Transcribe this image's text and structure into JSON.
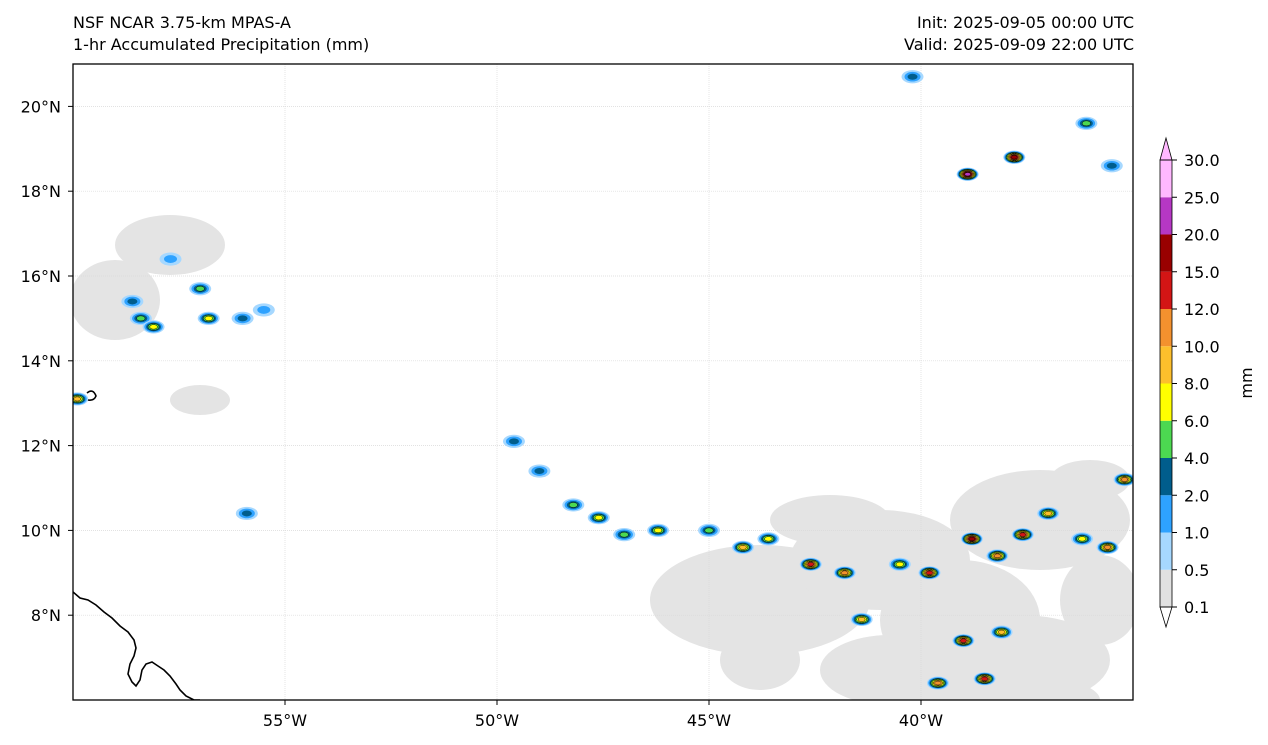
{
  "titles": {
    "left_line1": "NSF NCAR 3.75-km MPAS-A",
    "left_line2": "1-hr Accumulated Precipitation (mm)",
    "init": "Init: 2025-09-05 00:00 UTC",
    "valid": "Valid: 2025-09-09 22:00 UTC"
  },
  "map": {
    "lon_range": [
      -60,
      -35
    ],
    "lat_range": [
      6,
      21
    ],
    "lon_ticks": [
      {
        "value": -55,
        "label": "55°W"
      },
      {
        "value": -50,
        "label": "50°W"
      },
      {
        "value": -45,
        "label": "45°W"
      },
      {
        "value": -40,
        "label": "40°W"
      }
    ],
    "lat_ticks": [
      {
        "value": 8,
        "label": "8°N"
      },
      {
        "value": 10,
        "label": "10°N"
      },
      {
        "value": 12,
        "label": "12°N"
      },
      {
        "value": 14,
        "label": "14°N"
      },
      {
        "value": 16,
        "label": "16°N"
      },
      {
        "value": 18,
        "label": "18°N"
      },
      {
        "value": 20,
        "label": "20°N"
      }
    ],
    "gridlines": true,
    "precip_cells": [
      {
        "lon": -58.6,
        "lat": 15.4,
        "mm": 2.0
      },
      {
        "lon": -58.4,
        "lat": 15.0,
        "mm": 4.0
      },
      {
        "lon": -58.1,
        "lat": 14.8,
        "mm": 6.0
      },
      {
        "lon": -57.7,
        "lat": 16.4,
        "mm": 1.0
      },
      {
        "lon": -57.0,
        "lat": 15.7,
        "mm": 4.0
      },
      {
        "lon": -56.8,
        "lat": 15.0,
        "mm": 6.0
      },
      {
        "lon": -56.0,
        "lat": 15.0,
        "mm": 2.0
      },
      {
        "lon": -55.5,
        "lat": 15.2,
        "mm": 1.0
      },
      {
        "lon": -59.9,
        "lat": 13.1,
        "mm": 8.0
      },
      {
        "lon": -49.6,
        "lat": 12.1,
        "mm": 2.0
      },
      {
        "lon": -49.0,
        "lat": 11.4,
        "mm": 2.0
      },
      {
        "lon": -48.2,
        "lat": 10.6,
        "mm": 4.0
      },
      {
        "lon": -47.6,
        "lat": 10.3,
        "mm": 6.0
      },
      {
        "lon": -47.0,
        "lat": 9.9,
        "mm": 4.0
      },
      {
        "lon": -46.2,
        "lat": 10.0,
        "mm": 6.0
      },
      {
        "lon": -45.0,
        "lat": 10.0,
        "mm": 4.0
      },
      {
        "lon": -44.2,
        "lat": 9.6,
        "mm": 8.0
      },
      {
        "lon": -43.6,
        "lat": 9.8,
        "mm": 6.0
      },
      {
        "lon": -42.6,
        "lat": 9.2,
        "mm": 12.0
      },
      {
        "lon": -41.8,
        "lat": 9.0,
        "mm": 10.0
      },
      {
        "lon": -41.4,
        "lat": 7.9,
        "mm": 8.0
      },
      {
        "lon": -40.5,
        "lat": 9.2,
        "mm": 6.0
      },
      {
        "lon": -39.8,
        "lat": 9.0,
        "mm": 12.0
      },
      {
        "lon": -38.8,
        "lat": 9.8,
        "mm": 15.0
      },
      {
        "lon": -38.2,
        "lat": 9.4,
        "mm": 10.0
      },
      {
        "lon": -37.6,
        "lat": 9.9,
        "mm": 12.0
      },
      {
        "lon": -37.0,
        "lat": 10.4,
        "mm": 8.0
      },
      {
        "lon": -36.2,
        "lat": 9.8,
        "mm": 6.0
      },
      {
        "lon": -35.6,
        "lat": 9.6,
        "mm": 10.0
      },
      {
        "lon": -39.0,
        "lat": 7.4,
        "mm": 12.0
      },
      {
        "lon": -38.1,
        "lat": 7.6,
        "mm": 8.0
      },
      {
        "lon": -39.6,
        "lat": 6.4,
        "mm": 10.0
      },
      {
        "lon": -38.5,
        "lat": 6.5,
        "mm": 12.0
      },
      {
        "lon": -35.2,
        "lat": 11.2,
        "mm": 10.0
      },
      {
        "lon": -38.9,
        "lat": 18.4,
        "mm": 20.0
      },
      {
        "lon": -37.8,
        "lat": 18.8,
        "mm": 15.0
      },
      {
        "lon": -36.1,
        "lat": 19.6,
        "mm": 4.0
      },
      {
        "lon": -35.5,
        "lat": 18.6,
        "mm": 2.0
      },
      {
        "lon": -40.2,
        "lat": 20.7,
        "mm": 2.0
      },
      {
        "lon": -55.9,
        "lat": 10.4,
        "mm": 2.0
      }
    ]
  },
  "colorbar": {
    "label": "mm",
    "levels": [
      "0.1",
      "0.5",
      "1.0",
      "2.0",
      "4.0",
      "6.0",
      "8.0",
      "10.0",
      "12.0",
      "15.0",
      "20.0",
      "25.0",
      "30.0"
    ],
    "colors": [
      "#e1e1e1",
      "#a6d8ff",
      "#2ea2ff",
      "#005d8c",
      "#4cd851",
      "#ffff00",
      "#fdbf2c",
      "#f3912e",
      "#d31515",
      "#990000",
      "#b637c4",
      "#ffb8ff"
    ],
    "extend": "both"
  }
}
